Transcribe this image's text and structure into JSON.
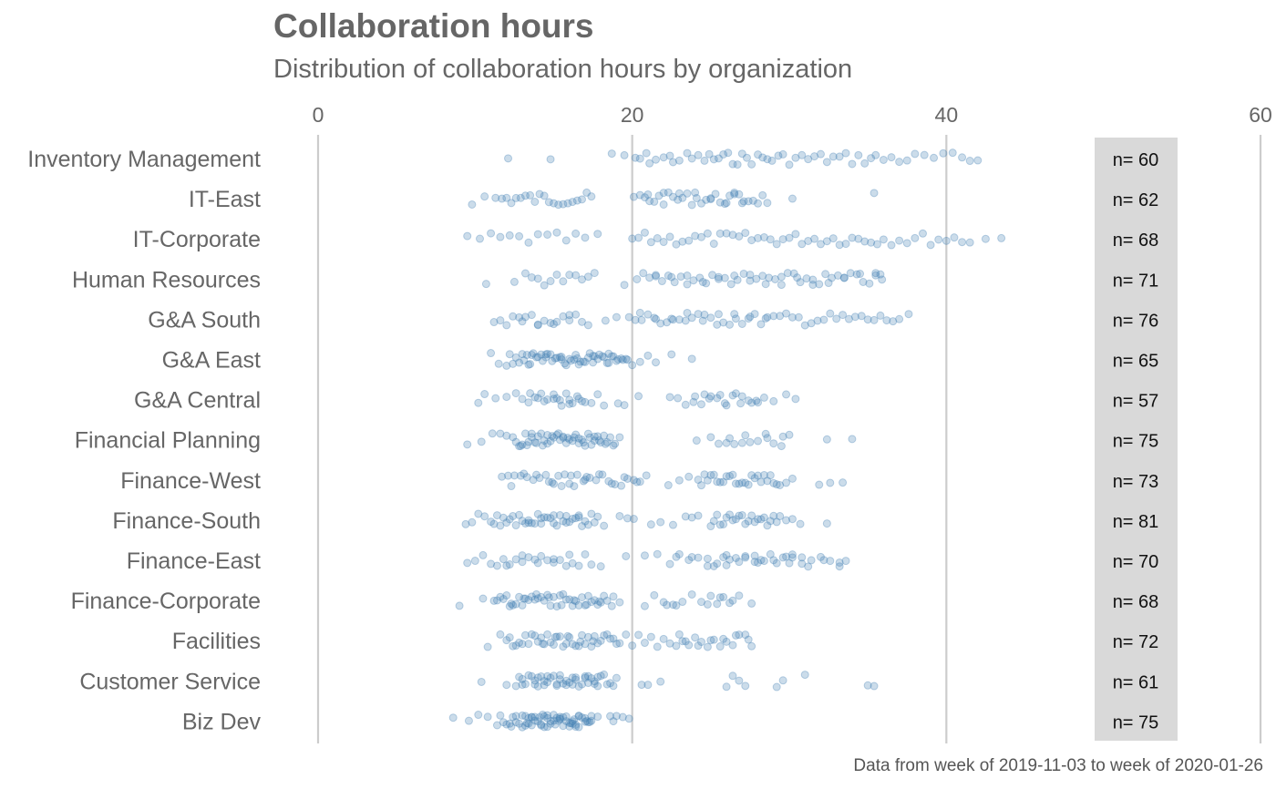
{
  "chart_data": {
    "type": "scatter",
    "title": "Collaboration hours",
    "subtitle": "Distribution of collaboration hours by organization",
    "caption": "Data from week of 2019-11-03 to week of 2020-01-26",
    "xlabel": "",
    "ylabel": "",
    "xlim": [
      0,
      60
    ],
    "x_ticks": [
      0,
      20,
      40,
      60
    ],
    "grid": "vertical major lines",
    "point_color": "#4682b4",
    "point_alpha": 0.25,
    "count_panel_color": "#d9d9d9",
    "categories": [
      "Inventory Management",
      "IT-East",
      "IT-Corporate",
      "Human Resources",
      "G&A South",
      "G&A East",
      "G&A Central",
      "Financial Planning",
      "Finance-West",
      "Finance-South",
      "Finance-East",
      "Finance-Corporate",
      "Facilities",
      "Customer Service",
      "Biz Dev"
    ],
    "counts": [
      "n= 60",
      "n= 62",
      "n= 68",
      "n= 71",
      "n= 76",
      "n= 65",
      "n= 57",
      "n= 75",
      "n= 73",
      "n= 81",
      "n= 70",
      "n= 68",
      "n= 72",
      "n= 61",
      "n= 75"
    ],
    "series": [
      {
        "category": "Inventory Management",
        "values": [
          12.1,
          14.8,
          18.7,
          19.5,
          20.2,
          20.5,
          20.9,
          21.1,
          21.5,
          22.0,
          22.4,
          22.6,
          23.0,
          23.5,
          23.8,
          24.2,
          24.6,
          24.9,
          25.2,
          25.5,
          25.8,
          26.1,
          26.4,
          26.7,
          27.0,
          27.3,
          27.6,
          28.0,
          28.3,
          28.6,
          28.9,
          29.3,
          29.6,
          30.0,
          30.4,
          30.8,
          31.2,
          31.6,
          32.0,
          32.4,
          32.8,
          33.2,
          33.6,
          34.0,
          34.4,
          34.8,
          35.2,
          35.5,
          36.0,
          36.5,
          37.0,
          37.5,
          38.0,
          38.6,
          39.2,
          39.8,
          40.4,
          41.0,
          41.5,
          42.0
        ]
      },
      {
        "category": "IT-East",
        "values": [
          9.8,
          10.6,
          11.3,
          11.7,
          12.0,
          12.3,
          12.6,
          12.9,
          13.2,
          13.5,
          13.8,
          14.1,
          14.4,
          14.7,
          15.0,
          15.3,
          15.6,
          15.9,
          16.2,
          16.5,
          16.8,
          17.1,
          17.4,
          20.1,
          20.5,
          20.8,
          21.1,
          21.4,
          21.7,
          22.0,
          22.3,
          22.6,
          22.9,
          23.2,
          23.5,
          23.8,
          24.1,
          24.4,
          24.7,
          25.0,
          25.3,
          25.6,
          25.9,
          26.2,
          26.5,
          26.8,
          27.1,
          27.4,
          27.7,
          28.0,
          28.3,
          28.6,
          21.0,
          22.0,
          23.0,
          24.0,
          25.0,
          26.0,
          27.0,
          26.5,
          30.2,
          35.4
        ]
      },
      {
        "category": "IT-Corporate",
        "values": [
          9.5,
          10.3,
          11.0,
          11.6,
          12.2,
          12.8,
          13.4,
          14.0,
          14.6,
          15.2,
          15.8,
          16.4,
          17.0,
          17.8,
          20.0,
          20.4,
          20.8,
          21.2,
          21.6,
          22.0,
          22.4,
          22.8,
          23.2,
          23.6,
          24.0,
          24.4,
          24.8,
          25.2,
          25.6,
          26.0,
          26.4,
          26.8,
          27.2,
          27.6,
          28.0,
          28.4,
          28.8,
          29.2,
          29.6,
          30.0,
          30.4,
          30.8,
          31.2,
          31.6,
          32.0,
          32.4,
          32.8,
          33.2,
          33.6,
          34.0,
          34.4,
          34.8,
          35.2,
          35.6,
          36.0,
          36.5,
          37.0,
          37.5,
          38.0,
          38.5,
          39.0,
          39.5,
          40.0,
          40.5,
          41.0,
          41.5,
          42.5,
          43.5
        ]
      },
      {
        "category": "Human Resources",
        "values": [
          10.7,
          12.5,
          13.2,
          13.6,
          14.0,
          14.4,
          14.8,
          15.2,
          15.6,
          16.0,
          16.4,
          16.8,
          17.2,
          17.6,
          19.5,
          20.3,
          20.7,
          21.1,
          21.5,
          21.9,
          22.3,
          22.7,
          23.1,
          23.5,
          23.9,
          24.3,
          24.7,
          25.1,
          25.5,
          25.9,
          26.3,
          26.7,
          27.1,
          27.5,
          27.9,
          28.3,
          28.7,
          29.1,
          29.5,
          29.9,
          30.3,
          30.7,
          31.1,
          31.5,
          31.9,
          32.3,
          32.7,
          33.1,
          33.5,
          33.9,
          34.3,
          34.7,
          35.1,
          35.5,
          35.9,
          21.5,
          22.5,
          23.5,
          24.5,
          25.5,
          26.5,
          27.5,
          28.5,
          29.5,
          30.5,
          31.5,
          32.5,
          33.5,
          34.5,
          35.5,
          35.8
        ]
      },
      {
        "category": "G&A South",
        "values": [
          11.2,
          11.6,
          12.0,
          12.4,
          12.8,
          13.2,
          13.6,
          14.0,
          14.4,
          14.8,
          15.2,
          15.6,
          16.0,
          16.4,
          16.8,
          17.2,
          18.3,
          19.0,
          19.8,
          20.2,
          20.6,
          21.0,
          21.4,
          21.8,
          22.2,
          22.6,
          23.0,
          23.4,
          23.8,
          24.2,
          24.6,
          25.0,
          25.4,
          25.8,
          26.2,
          26.6,
          27.0,
          27.4,
          27.8,
          28.2,
          28.6,
          29.0,
          29.4,
          29.8,
          30.2,
          30.6,
          31.0,
          31.4,
          31.8,
          32.2,
          32.6,
          33.0,
          33.4,
          33.8,
          34.2,
          34.6,
          35.0,
          35.4,
          35.8,
          36.2,
          36.6,
          37.0,
          37.6,
          20.5,
          21.5,
          22.5,
          23.5,
          24.5,
          25.5,
          26.5,
          27.5,
          28.5,
          13.0,
          14.0,
          15.0,
          16.0
        ]
      },
      {
        "category": "G&A East",
        "values": [
          11.0,
          11.5,
          12.0,
          12.4,
          12.8,
          13.1,
          13.4,
          13.7,
          14.0,
          14.3,
          14.6,
          14.9,
          15.2,
          15.5,
          15.8,
          16.1,
          16.4,
          16.7,
          17.0,
          17.3,
          17.6,
          17.9,
          18.2,
          18.5,
          18.8,
          19.1,
          19.4,
          19.7,
          20.0,
          12.2,
          12.6,
          13.0,
          13.3,
          13.6,
          13.9,
          14.2,
          14.5,
          14.8,
          15.1,
          15.4,
          15.7,
          16.0,
          16.3,
          16.6,
          16.9,
          17.2,
          17.5,
          17.8,
          18.1,
          18.4,
          18.7,
          19.0,
          19.3,
          19.6,
          13.5,
          14.5,
          15.5,
          16.5,
          17.5,
          18.5,
          20.5,
          21.0,
          21.5,
          22.5,
          23.8
        ]
      },
      {
        "category": "G&A Central",
        "values": [
          10.2,
          10.6,
          11.3,
          12.0,
          12.6,
          13.0,
          13.4,
          13.8,
          14.2,
          14.6,
          15.0,
          15.4,
          15.8,
          16.2,
          16.6,
          17.0,
          17.4,
          17.8,
          18.2,
          19.1,
          19.5,
          20.4,
          22.4,
          22.9,
          23.4,
          23.9,
          24.4,
          24.9,
          25.4,
          25.9,
          26.4,
          26.9,
          27.4,
          27.9,
          28.4,
          29.0,
          29.8,
          30.4,
          14.0,
          15.0,
          16.0,
          16.5,
          13.5,
          15.5,
          16.8,
          24.0,
          25.0,
          26.0,
          27.0,
          28.0,
          14.4,
          15.2,
          16.0,
          24.6,
          25.6,
          26.6,
          27.6
        ]
      },
      {
        "category": "Financial Planning",
        "values": [
          9.5,
          10.4,
          11.1,
          11.6,
          12.0,
          12.4,
          12.8,
          13.2,
          13.6,
          14.0,
          14.4,
          14.8,
          15.2,
          15.6,
          16.0,
          16.4,
          16.8,
          17.2,
          17.6,
          18.0,
          18.4,
          18.8,
          19.2,
          13.0,
          13.4,
          13.8,
          14.2,
          14.6,
          15.0,
          15.4,
          15.8,
          16.2,
          16.6,
          17.0,
          17.4,
          17.8,
          18.2,
          12.6,
          13.6,
          14.6,
          15.6,
          16.6,
          17.6,
          18.6,
          13.3,
          14.3,
          15.3,
          16.3,
          17.3,
          18.3,
          12.9,
          13.9,
          14.9,
          15.9,
          16.9,
          17.9,
          18.9,
          24.1,
          25.0,
          25.5,
          26.0,
          26.5,
          27.0,
          27.5,
          28.0,
          28.5,
          29.0,
          29.5,
          30.0,
          32.4,
          34.0,
          26.2,
          27.2,
          28.6,
          29.6
        ]
      },
      {
        "category": "Finance-West",
        "values": [
          11.7,
          12.1,
          12.5,
          12.9,
          13.3,
          13.7,
          14.1,
          14.5,
          14.9,
          15.3,
          15.7,
          16.1,
          16.5,
          16.9,
          17.3,
          17.7,
          18.1,
          18.5,
          18.9,
          19.3,
          19.7,
          20.1,
          20.5,
          20.9,
          22.3,
          23.0,
          23.6,
          24.2,
          24.6,
          25.0,
          25.4,
          25.8,
          26.2,
          26.6,
          27.0,
          27.4,
          27.8,
          28.2,
          28.6,
          29.0,
          29.4,
          29.8,
          30.2,
          31.9,
          32.6,
          33.4,
          12.3,
          13.1,
          13.9,
          14.7,
          15.5,
          16.3,
          17.1,
          17.9,
          18.7,
          19.5,
          20.3,
          24.4,
          25.2,
          26.0,
          26.8,
          27.6,
          28.4,
          29.2,
          15.0,
          16.0,
          17.0,
          24.8,
          25.6,
          26.4,
          27.2,
          28.0,
          28.8
        ]
      },
      {
        "category": "Finance-South",
        "values": [
          9.4,
          9.8,
          10.2,
          10.6,
          11.0,
          11.4,
          11.8,
          12.2,
          12.6,
          13.0,
          13.4,
          13.8,
          14.2,
          14.6,
          15.0,
          15.4,
          15.8,
          16.2,
          16.6,
          17.0,
          17.4,
          17.8,
          18.2,
          19.7,
          20.1,
          21.8,
          22.6,
          23.4,
          24.2,
          25.0,
          25.4,
          25.8,
          26.2,
          26.6,
          27.0,
          27.4,
          27.8,
          28.2,
          28.6,
          29.0,
          29.4,
          29.8,
          30.2,
          30.7,
          32.4,
          11.2,
          12.0,
          12.8,
          13.6,
          14.4,
          15.2,
          16.0,
          16.8,
          17.6,
          11.6,
          12.4,
          13.2,
          14.0,
          14.8,
          15.6,
          16.4,
          17.2,
          25.2,
          26.0,
          26.8,
          27.6,
          28.4,
          29.2,
          13.4,
          14.2,
          15.0,
          15.8,
          16.6,
          25.6,
          26.4,
          27.2,
          28.0,
          28.8,
          19.2,
          21.2,
          23.8
        ]
      },
      {
        "category": "Finance-East",
        "values": [
          9.5,
          10.0,
          10.5,
          11.0,
          11.4,
          11.8,
          12.2,
          12.6,
          13.0,
          13.4,
          13.8,
          14.2,
          14.6,
          15.0,
          15.4,
          15.8,
          16.2,
          16.6,
          17.0,
          17.4,
          18.0,
          19.6,
          20.8,
          21.6,
          22.4,
          23.0,
          23.6,
          24.2,
          24.8,
          25.4,
          26.0,
          26.6,
          27.2,
          27.8,
          28.4,
          29.0,
          29.6,
          30.2,
          30.8,
          31.4,
          32.0,
          32.6,
          33.2,
          33.6,
          22.8,
          23.8,
          24.8,
          25.8,
          26.8,
          27.8,
          28.8,
          29.8,
          30.8,
          25.2,
          26.2,
          27.2,
          28.2,
          29.2,
          30.2,
          31.2,
          32.2,
          33.2,
          12.0,
          13.0,
          14.0,
          15.0,
          16.0,
          26.0,
          28.0,
          30.0
        ]
      },
      {
        "category": "Finance-Corporate",
        "values": [
          9.0,
          10.5,
          11.2,
          11.6,
          12.0,
          12.4,
          12.8,
          13.2,
          13.6,
          14.0,
          14.4,
          14.8,
          15.2,
          15.6,
          16.0,
          16.4,
          16.8,
          17.2,
          17.6,
          18.0,
          18.4,
          18.8,
          19.2,
          20.8,
          21.4,
          22.0,
          22.6,
          23.2,
          23.8,
          24.4,
          25.0,
          25.6,
          26.2,
          26.8,
          27.6,
          11.4,
          12.2,
          13.0,
          13.8,
          14.6,
          15.4,
          16.2,
          17.0,
          17.8,
          11.8,
          12.6,
          13.4,
          14.2,
          15.0,
          15.8,
          16.6,
          17.4,
          18.2,
          12.3,
          13.1,
          13.9,
          14.7,
          15.5,
          16.3,
          17.1,
          17.9,
          18.7,
          22.2,
          22.8,
          24.8,
          25.4,
          25.8,
          26.4
        ]
      },
      {
        "category": "Facilities",
        "values": [
          10.8,
          11.6,
          12.0,
          12.4,
          12.8,
          13.2,
          13.6,
          14.0,
          14.4,
          14.8,
          15.2,
          15.6,
          16.0,
          16.4,
          16.8,
          17.2,
          17.6,
          18.0,
          18.4,
          18.8,
          19.2,
          19.6,
          20.0,
          20.4,
          20.8,
          21.2,
          21.6,
          22.0,
          22.4,
          22.8,
          23.2,
          23.6,
          24.0,
          24.4,
          24.8,
          25.2,
          25.6,
          26.0,
          26.4,
          26.8,
          27.2,
          27.6,
          12.2,
          13.0,
          13.8,
          14.6,
          15.4,
          16.2,
          17.0,
          17.8,
          18.6,
          12.6,
          13.4,
          14.2,
          15.0,
          15.8,
          16.6,
          17.4,
          18.2,
          19.0,
          14.3,
          15.1,
          15.9,
          16.7,
          17.5,
          23.4,
          24.2,
          25.0,
          25.8,
          26.6,
          27.4,
          23.0
        ]
      },
      {
        "category": "Customer Service",
        "values": [
          10.4,
          12.0,
          12.6,
          13.0,
          13.4,
          13.8,
          14.2,
          14.6,
          15.0,
          15.4,
          15.8,
          16.2,
          16.6,
          17.0,
          17.4,
          17.8,
          18.2,
          18.6,
          19.0,
          20.6,
          21.0,
          21.8,
          26.0,
          26.4,
          26.8,
          27.2,
          29.2,
          29.6,
          31.0,
          35.0,
          35.4,
          13.2,
          13.6,
          14.0,
          14.4,
          14.8,
          15.2,
          15.6,
          16.0,
          16.4,
          16.8,
          17.2,
          17.6,
          18.0,
          18.4,
          13.8,
          14.6,
          15.4,
          16.2,
          17.0,
          17.8,
          12.8,
          14.0,
          15.2,
          16.4,
          17.6,
          13.0,
          14.4,
          15.8,
          17.2,
          18.8
        ]
      },
      {
        "category": "Biz Dev",
        "values": [
          8.6,
          9.6,
          10.2,
          10.8,
          11.4,
          11.8,
          12.2,
          12.6,
          13.0,
          13.4,
          13.8,
          14.2,
          14.6,
          15.0,
          15.4,
          15.8,
          16.2,
          16.6,
          17.0,
          17.4,
          17.8,
          18.6,
          19.4,
          19.8,
          11.6,
          12.4,
          13.2,
          14.0,
          14.8,
          15.6,
          16.4,
          17.2,
          12.0,
          12.8,
          13.6,
          14.4,
          15.2,
          16.0,
          16.8,
          13.0,
          13.8,
          14.6,
          15.4,
          16.2,
          17.0,
          13.4,
          14.2,
          15.0,
          15.8,
          16.6,
          12.6,
          13.6,
          14.6,
          15.6,
          16.6,
          13.2,
          14.1,
          15.1,
          16.1,
          17.1,
          18.8,
          14.4,
          15.4,
          16.4,
          12.3,
          13.3,
          14.3,
          15.3,
          16.3,
          17.3,
          13.6,
          14.8,
          16.0,
          17.4,
          19.0
        ]
      }
    ]
  }
}
